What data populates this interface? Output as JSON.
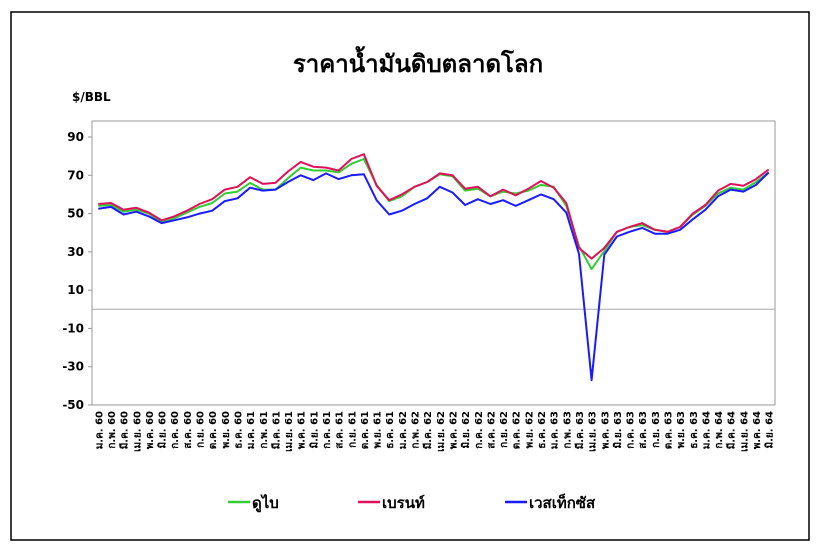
{
  "chart_data": {
    "type": "line",
    "title": "ราคาน้ำมันดิบตลาดโลก",
    "y_label": "$/BBL",
    "categories": [
      "ม.ค. 60",
      "ก.พ. 60",
      "มี.ค. 60",
      "เม.ย. 60",
      "พ.ค. 60",
      "มิ.ย. 60",
      "ก.ค. 60",
      "ส.ค. 60",
      "ก.ย. 60",
      "ต.ค. 60",
      "พ.ย. 60",
      "ธ.ค. 60",
      "ม.ค. 61",
      "ก.พ. 61",
      "มี.ค. 61",
      "เม.ย. 61",
      "พ.ค. 61",
      "มิ.ย. 61",
      "ก.ค. 61",
      "ส.ค. 61",
      "ก.ย. 61",
      "ต.ค. 61",
      "พ.ย. 61",
      "ธ.ค. 61",
      "ม.ค. 62",
      "ก.พ. 62",
      "มี.ค. 62",
      "เม.ย. 62",
      "พ.ค. 62",
      "มิ.ย. 62",
      "ก.ค. 62",
      "ส.ค. 62",
      "ก.ย. 62",
      "ต.ค. 62",
      "พ.ย. 62",
      "ธ.ค. 62",
      "ม.ค. 63",
      "ก.พ. 63",
      "มี.ค. 63",
      "เม.ย. 63",
      "พ.ค. 63",
      "มิ.ย. 63",
      "ก.ค. 63",
      "ส.ค. 63",
      "ก.ย. 63",
      "ต.ค. 63",
      "พ.ย. 63",
      "ธ.ค. 63",
      "ม.ค. 64",
      "ก.พ. 64",
      "มี.ค. 64",
      "เม.ย. 64",
      "พ.ค. 64",
      "มิ.ย. 64"
    ],
    "series": [
      {
        "name": "ดูไบ",
        "color": "#33cc33",
        "values": [
          54,
          54.5,
          51,
          52,
          50,
          45.5,
          47.5,
          50.5,
          53.5,
          55.5,
          60.5,
          61.5,
          66,
          62.5,
          62.5,
          68.5,
          74,
          72.5,
          72.5,
          71.5,
          76,
          78.5,
          65,
          56.5,
          59,
          64,
          66.5,
          70.5,
          69.5,
          62,
          63,
          59,
          61.5,
          60.5,
          62,
          65,
          64,
          54,
          33,
          21,
          30.5,
          40.5,
          43,
          44,
          41.5,
          40.5,
          43,
          49.5,
          54,
          60.5,
          63.5,
          62.5,
          66.5,
          71.5
        ]
      },
      {
        "name": "เบรนท์",
        "color": "#e0105a",
        "values": [
          55,
          55.5,
          52,
          53,
          50.5,
          46.5,
          48.5,
          51.5,
          55,
          57.5,
          62.5,
          64,
          69,
          65.5,
          66,
          72,
          77,
          74.5,
          74,
          72.5,
          78.5,
          81,
          64.5,
          57,
          60,
          64,
          66.5,
          71,
          70,
          63,
          64,
          59,
          62.5,
          59.5,
          63,
          67,
          63.5,
          55.5,
          32,
          26.5,
          32,
          40.5,
          43,
          45,
          41.5,
          40.5,
          43,
          50,
          54.5,
          62,
          65.5,
          64.5,
          68,
          73
        ]
      },
      {
        "name": "เวสเท็กซัส",
        "color": "#1a1aff",
        "values": [
          52.5,
          53.5,
          49.5,
          51,
          48.5,
          45,
          46.5,
          48,
          50,
          51.5,
          56.5,
          58,
          63.5,
          62,
          62.5,
          66.5,
          70,
          67.5,
          71,
          68,
          70,
          70.5,
          57,
          49.5,
          51.5,
          55,
          58,
          64,
          61,
          54.5,
          57.5,
          55,
          57,
          54,
          57,
          60,
          57.5,
          50.5,
          29,
          -37,
          28.5,
          38,
          40.5,
          42.5,
          39.5,
          39.5,
          41.5,
          47,
          52,
          59,
          62.5,
          61.5,
          65,
          71.5
        ]
      }
    ],
    "ylim": [
      -50,
      90
    ],
    "yticks": [
      -50,
      -30,
      -10,
      10,
      30,
      50,
      70,
      90
    ],
    "legend": "bottom"
  }
}
